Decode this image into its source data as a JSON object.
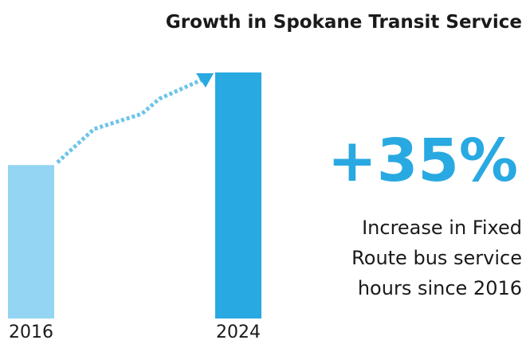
{
  "chart_data": {
    "type": "bar",
    "title": "Growth in Spokane Transit Service",
    "categories": [
      "2016",
      "2024"
    ],
    "values": [
      100,
      135
    ],
    "colors": [
      "#93d5f2",
      "#29a9e1"
    ],
    "ylim": [
      42,
      135
    ],
    "highlight": "+35%",
    "description": [
      "Increase in Fixed",
      "Route bus service",
      "hours since 2016"
    ]
  }
}
